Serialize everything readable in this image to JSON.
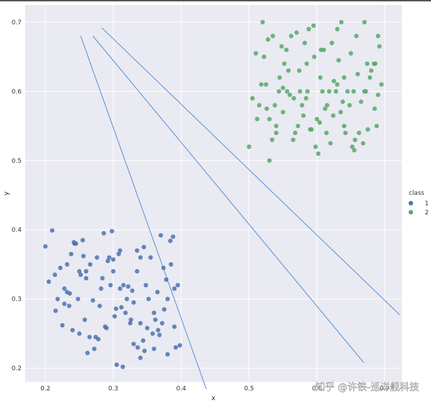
{
  "chart_data": {
    "type": "scatter",
    "title": "",
    "xlabel": "x",
    "ylabel": "y",
    "xlim": [
      0.17,
      0.725
    ],
    "ylim": [
      0.18,
      0.725
    ],
    "xticks": [
      "0.2",
      "0.3",
      "0.4",
      "0.5",
      "0.6",
      "0.7"
    ],
    "yticks": [
      "0.2",
      "0.3",
      "0.4",
      "0.5",
      "0.6",
      "0.7"
    ],
    "grid": true,
    "legend": {
      "title": "class",
      "placement": "right",
      "entries": [
        "1",
        "2"
      ]
    },
    "colors": {
      "1": "#4c72b0",
      "2": "#55a868",
      "lines": "#4c8fd6",
      "background": "#eaeaf2",
      "grid": "#ffffff"
    },
    "series": [
      {
        "name": "1",
        "x": [
          0.2,
          0.205,
          0.215,
          0.21,
          0.222,
          0.228,
          0.232,
          0.235,
          0.238,
          0.24,
          0.243,
          0.248,
          0.25,
          0.255,
          0.26,
          0.265,
          0.27,
          0.272,
          0.276,
          0.282,
          0.288,
          0.292,
          0.298,
          0.302,
          0.305,
          0.31,
          0.315,
          0.32,
          0.325,
          0.33,
          0.335,
          0.34,
          0.345,
          0.35,
          0.355,
          0.36,
          0.365,
          0.37,
          0.375,
          0.38,
          0.385,
          0.39,
          0.395,
          0.398,
          0.225,
          0.245,
          0.262,
          0.286,
          0.3,
          0.318,
          0.336,
          0.352,
          0.372,
          0.388,
          0.214,
          0.236,
          0.256,
          0.274,
          0.296,
          0.312,
          0.328,
          0.344,
          0.362,
          0.378,
          0.218,
          0.242,
          0.266,
          0.29,
          0.308,
          0.322,
          0.34,
          0.358,
          0.374,
          0.392,
          0.228,
          0.252,
          0.278,
          0.294,
          0.314,
          0.33,
          0.348,
          0.366,
          0.384,
          0.232,
          0.258,
          0.284,
          0.304,
          0.326,
          0.346,
          0.368,
          0.39,
          0.26,
          0.28,
          0.31,
          0.335,
          0.36,
          0.38,
          0.25,
          0.3,
          0.34
        ],
        "y": [
          0.376,
          0.325,
          0.283,
          0.399,
          0.345,
          0.315,
          0.35,
          0.29,
          0.365,
          0.255,
          0.38,
          0.3,
          0.25,
          0.385,
          0.34,
          0.245,
          0.298,
          0.228,
          0.36,
          0.315,
          0.26,
          0.355,
          0.398,
          0.275,
          0.205,
          0.37,
          0.32,
          0.3,
          0.265,
          0.235,
          0.34,
          0.215,
          0.375,
          0.258,
          0.36,
          0.228,
          0.31,
          0.392,
          0.285,
          0.22,
          0.35,
          0.26,
          0.32,
          0.233,
          0.262,
          0.38,
          0.222,
          0.395,
          0.34,
          0.28,
          0.23,
          0.3,
          0.265,
          0.39,
          0.335,
          0.308,
          0.362,
          0.245,
          0.32,
          0.288,
          0.312,
          0.24,
          0.27,
          0.328,
          0.3,
          0.382,
          0.35,
          0.258,
          0.365,
          0.318,
          0.265,
          0.25,
          0.345,
          0.23,
          0.293,
          0.335,
          0.242,
          0.36,
          0.202,
          0.295,
          0.32,
          0.255,
          0.384,
          0.31,
          0.27,
          0.33,
          0.286,
          0.27,
          0.225,
          0.248,
          0.315,
          0.33,
          0.29,
          0.315,
          0.37,
          0.28,
          0.3,
          0.34,
          0.357,
          0.36
        ]
      },
      {
        "name": "2",
        "x": [
          0.5,
          0.505,
          0.51,
          0.515,
          0.52,
          0.525,
          0.53,
          0.535,
          0.54,
          0.545,
          0.55,
          0.555,
          0.56,
          0.565,
          0.57,
          0.575,
          0.58,
          0.585,
          0.59,
          0.595,
          0.6,
          0.605,
          0.61,
          0.615,
          0.62,
          0.625,
          0.63,
          0.635,
          0.64,
          0.645,
          0.65,
          0.655,
          0.66,
          0.665,
          0.67,
          0.675,
          0.68,
          0.685,
          0.69,
          0.695,
          0.512,
          0.528,
          0.544,
          0.558,
          0.572,
          0.588,
          0.602,
          0.618,
          0.632,
          0.648,
          0.662,
          0.678,
          0.692,
          0.518,
          0.534,
          0.552,
          0.566,
          0.582,
          0.598,
          0.612,
          0.628,
          0.642,
          0.658,
          0.672,
          0.688,
          0.522,
          0.538,
          0.556,
          0.574,
          0.592,
          0.608,
          0.624,
          0.64,
          0.656,
          0.674,
          0.69,
          0.526,
          0.548,
          0.568,
          0.586,
          0.604,
          0.622,
          0.638,
          0.654,
          0.668,
          0.684,
          0.53,
          0.55,
          0.578,
          0.596,
          0.614,
          0.636,
          0.652,
          0.67,
          0.686,
          0.54,
          0.562,
          0.584,
          0.606,
          0.63
        ],
        "y": [
          0.52,
          0.59,
          0.655,
          0.58,
          0.7,
          0.61,
          0.5,
          0.68,
          0.54,
          0.62,
          0.57,
          0.66,
          0.595,
          0.53,
          0.685,
          0.6,
          0.565,
          0.64,
          0.545,
          0.695,
          0.56,
          0.62,
          0.66,
          0.58,
          0.525,
          0.615,
          0.69,
          0.57,
          0.55,
          0.6,
          0.655,
          0.515,
          0.625,
          0.585,
          0.7,
          0.545,
          0.63,
          0.575,
          0.68,
          0.61,
          0.56,
          0.675,
          0.6,
          0.63,
          0.55,
          0.69,
          0.51,
          0.6,
          0.645,
          0.58,
          0.54,
          0.62,
          0.665,
          0.61,
          0.53,
          0.64,
          0.59,
          0.67,
          0.52,
          0.575,
          0.6,
          0.54,
          0.68,
          0.6,
          0.55,
          0.65,
          0.58,
          0.6,
          0.63,
          0.545,
          0.6,
          0.565,
          0.62,
          0.53,
          0.64,
          0.595,
          0.575,
          0.665,
          0.54,
          0.6,
          0.555,
          0.67,
          0.585,
          0.6,
          0.525,
          0.64,
          0.56,
          0.605,
          0.58,
          0.65,
          0.54,
          0.7,
          0.52,
          0.6,
          0.64,
          0.55,
          0.68,
          0.59,
          0.66,
          0.61
        ]
      }
    ],
    "lines": [
      {
        "x": [
          0.252,
          0.437
        ],
        "y": [
          0.68,
          0.17
        ]
      },
      {
        "x": [
          0.27,
          0.669
        ],
        "y": [
          0.68,
          0.208
        ]
      },
      {
        "x": [
          0.283,
          0.722
        ],
        "y": [
          0.692,
          0.277
        ]
      }
    ],
    "watermark": "知乎 @许铁-巡洋舰科技"
  }
}
